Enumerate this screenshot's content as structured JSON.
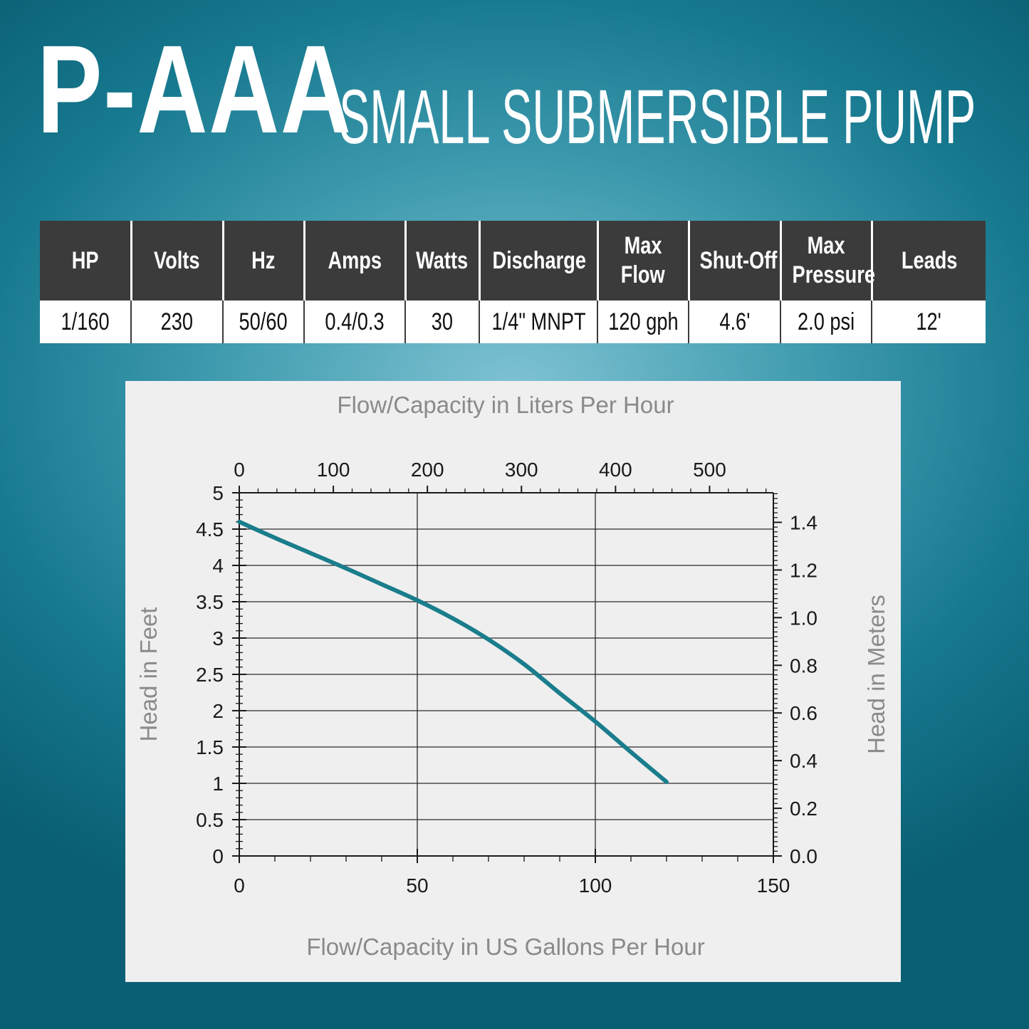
{
  "header": {
    "model": "P-AAA",
    "subtitle": "SMALL SUBMERSIBLE PUMP"
  },
  "specs": {
    "headers": [
      [
        "HP"
      ],
      [
        "Volts"
      ],
      [
        "Hz"
      ],
      [
        "Amps"
      ],
      [
        "Watts"
      ],
      [
        "Discharge"
      ],
      [
        "Max",
        "Flow"
      ],
      [
        "Shut-Off"
      ],
      [
        "Max",
        "Pressure"
      ],
      [
        "Leads"
      ]
    ],
    "values": [
      "1/160",
      "230",
      "50/60",
      "0.4/0.3",
      "30",
      "1/4\" MNPT",
      "120 gph",
      "4.6'",
      "2.0 psi",
      "12'"
    ]
  },
  "colors": {
    "curve": "#1a7d8c",
    "axis_text": "#1a1a1a",
    "label_text": "#8a8a8a",
    "header_bg": "#3b3b3c"
  },
  "chart_data": {
    "type": "line",
    "xlabel": "Flow/Capacity in US Gallons Per Hour",
    "x2label": "Flow/Capacity in Liters Per Hour",
    "ylabel": "Head in Feet",
    "y2label": "Head in Meters",
    "xlim": [
      0,
      150
    ],
    "ylim": [
      0,
      5
    ],
    "x2lim": [
      0,
      567.8
    ],
    "y2lim": [
      0,
      1.524
    ],
    "xticks": [
      "0",
      "50",
      "100",
      "150"
    ],
    "yticks": [
      "0",
      "0.5",
      "1",
      "1.5",
      "2",
      "2.5",
      "3",
      "3.5",
      "4",
      "4.5",
      "5"
    ],
    "x2ticks": [
      "0",
      "100",
      "200",
      "300",
      "400",
      "500"
    ],
    "y2ticks": [
      "0.0",
      "0.2",
      "0.4",
      "0.6",
      "0.8",
      "1.0",
      "1.2",
      "1.4"
    ],
    "grid": true,
    "series": [
      {
        "x": [
          0,
          10,
          20,
          30,
          40,
          50,
          60,
          70,
          80,
          90,
          100,
          110,
          120
        ],
        "y": [
          4.6,
          4.38,
          4.17,
          3.96,
          3.74,
          3.52,
          3.27,
          2.98,
          2.64,
          2.24,
          1.85,
          1.43,
          1.02
        ]
      }
    ]
  }
}
